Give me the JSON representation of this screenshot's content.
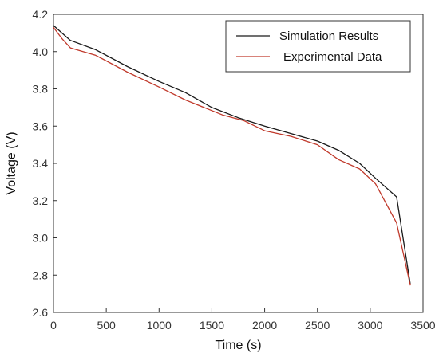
{
  "chart_data": {
    "type": "line",
    "xlabel": "Time (s)",
    "ylabel": "Voltage (V)",
    "xlim": [
      0,
      3500
    ],
    "ylim": [
      2.6,
      4.2
    ],
    "x_ticks": [
      0,
      500,
      1000,
      1500,
      2000,
      2500,
      3000,
      3500
    ],
    "y_ticks": [
      2.6,
      2.8,
      3.0,
      3.2,
      3.4,
      3.6,
      3.8,
      4.0,
      4.2
    ],
    "grid": false,
    "legend": "top-right",
    "series": [
      {
        "name": "Simulation Results",
        "color": "#1a1a1a",
        "x": [
          0,
          80,
          160,
          400,
          700,
          1000,
          1250,
          1500,
          1750,
          2000,
          2250,
          2500,
          2700,
          2900,
          3050,
          3250,
          3380
        ],
        "y": [
          4.14,
          4.1,
          4.06,
          4.01,
          3.92,
          3.84,
          3.78,
          3.7,
          3.645,
          3.6,
          3.56,
          3.52,
          3.47,
          3.4,
          3.32,
          3.22,
          2.75
        ]
      },
      {
        "name": "Experimental Data",
        "color": "#c0392b",
        "x": [
          0,
          80,
          160,
          400,
          700,
          1000,
          1250,
          1600,
          1800,
          2000,
          2250,
          2500,
          2700,
          2900,
          3050,
          3250,
          3380
        ],
        "y": [
          4.13,
          4.07,
          4.02,
          3.98,
          3.89,
          3.81,
          3.74,
          3.66,
          3.63,
          3.575,
          3.545,
          3.5,
          3.42,
          3.37,
          3.29,
          3.08,
          2.745
        ]
      }
    ]
  }
}
